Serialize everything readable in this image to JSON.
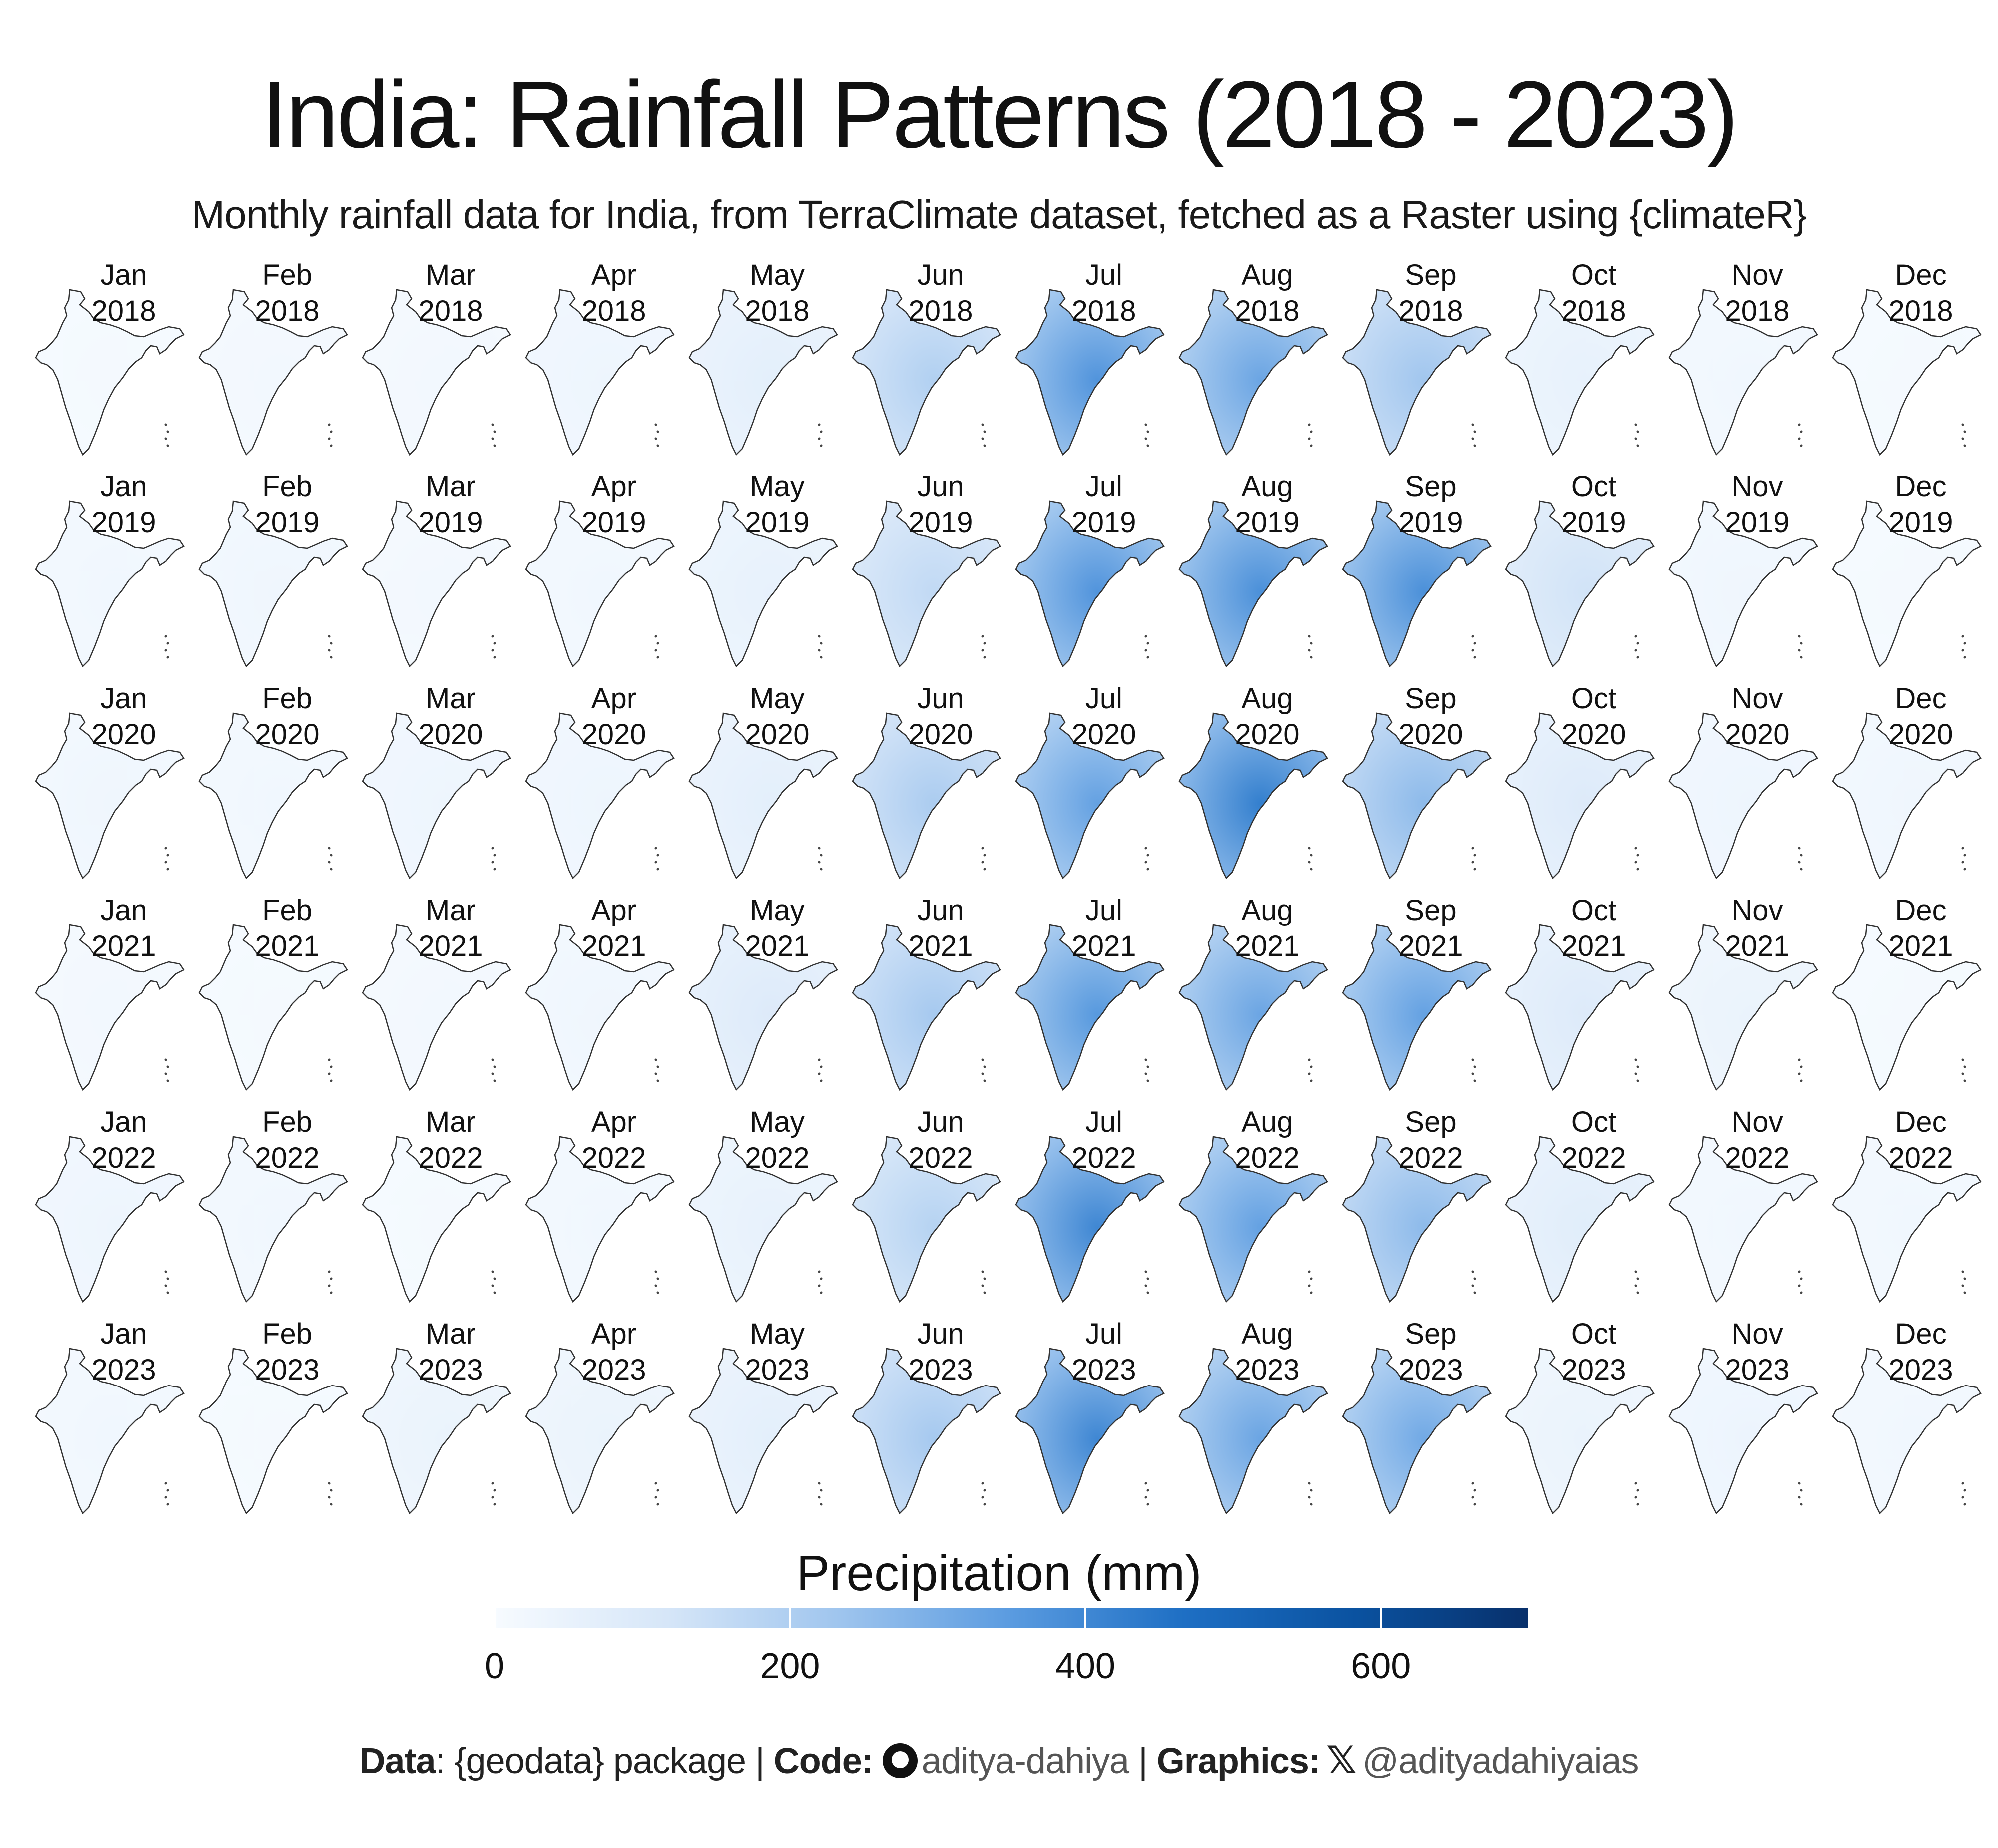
{
  "title": "India: Rainfall Patterns (2018 - 2023)",
  "subtitle": "Monthly rainfall data for India, from TerraClimate dataset, fetched as a Raster using {climateR}",
  "footer": {
    "data_label": "Data",
    "data_value": ": {geodata} package | ",
    "code_label": "Code:",
    "code_handle": "aditya-dahiya",
    "graphics_sep": " | ",
    "graphics_label": "Graphics:",
    "graphics_handle": "@adityadahiyaias",
    "code_icon": "github-icon",
    "graphics_icon": "x-icon"
  },
  "chart_data": {
    "type": "heatmap",
    "subtype": "small-multiple choropleth maps of India",
    "months": [
      "Jan",
      "Feb",
      "Mar",
      "Apr",
      "May",
      "Jun",
      "Jul",
      "Aug",
      "Sep",
      "Oct",
      "Nov",
      "Dec"
    ],
    "years": [
      "2018",
      "2019",
      "2020",
      "2021",
      "2022",
      "2023"
    ],
    "value_description": "approximate national mean monthly precipitation (mm) estimated from map shading",
    "values": [
      [
        10,
        15,
        15,
        30,
        60,
        170,
        320,
        280,
        200,
        50,
        20,
        10
      ],
      [
        20,
        25,
        15,
        20,
        50,
        140,
        320,
        330,
        330,
        110,
        25,
        10
      ],
      [
        25,
        20,
        30,
        30,
        60,
        180,
        290,
        370,
        230,
        80,
        30,
        25
      ],
      [
        15,
        10,
        15,
        25,
        80,
        190,
        310,
        280,
        290,
        80,
        40,
        10
      ],
      [
        30,
        20,
        10,
        20,
        50,
        160,
        350,
        290,
        230,
        70,
        20,
        20
      ],
      [
        20,
        10,
        40,
        40,
        60,
        190,
        350,
        280,
        270,
        40,
        35,
        20
      ]
    ],
    "legend": {
      "title": "Precipitation (mm)",
      "range": [
        0,
        700
      ],
      "ticks": [
        0,
        200,
        400,
        600
      ],
      "tick_labels": [
        "0",
        "200",
        "400",
        "600"
      ],
      "colors": [
        "#f7fbff",
        "#d6e6f8",
        "#9fc5ee",
        "#5a9be0",
        "#1e6fc4",
        "#0a52a0",
        "#08306b"
      ]
    },
    "legend_position": "bottom",
    "grid": false
  }
}
